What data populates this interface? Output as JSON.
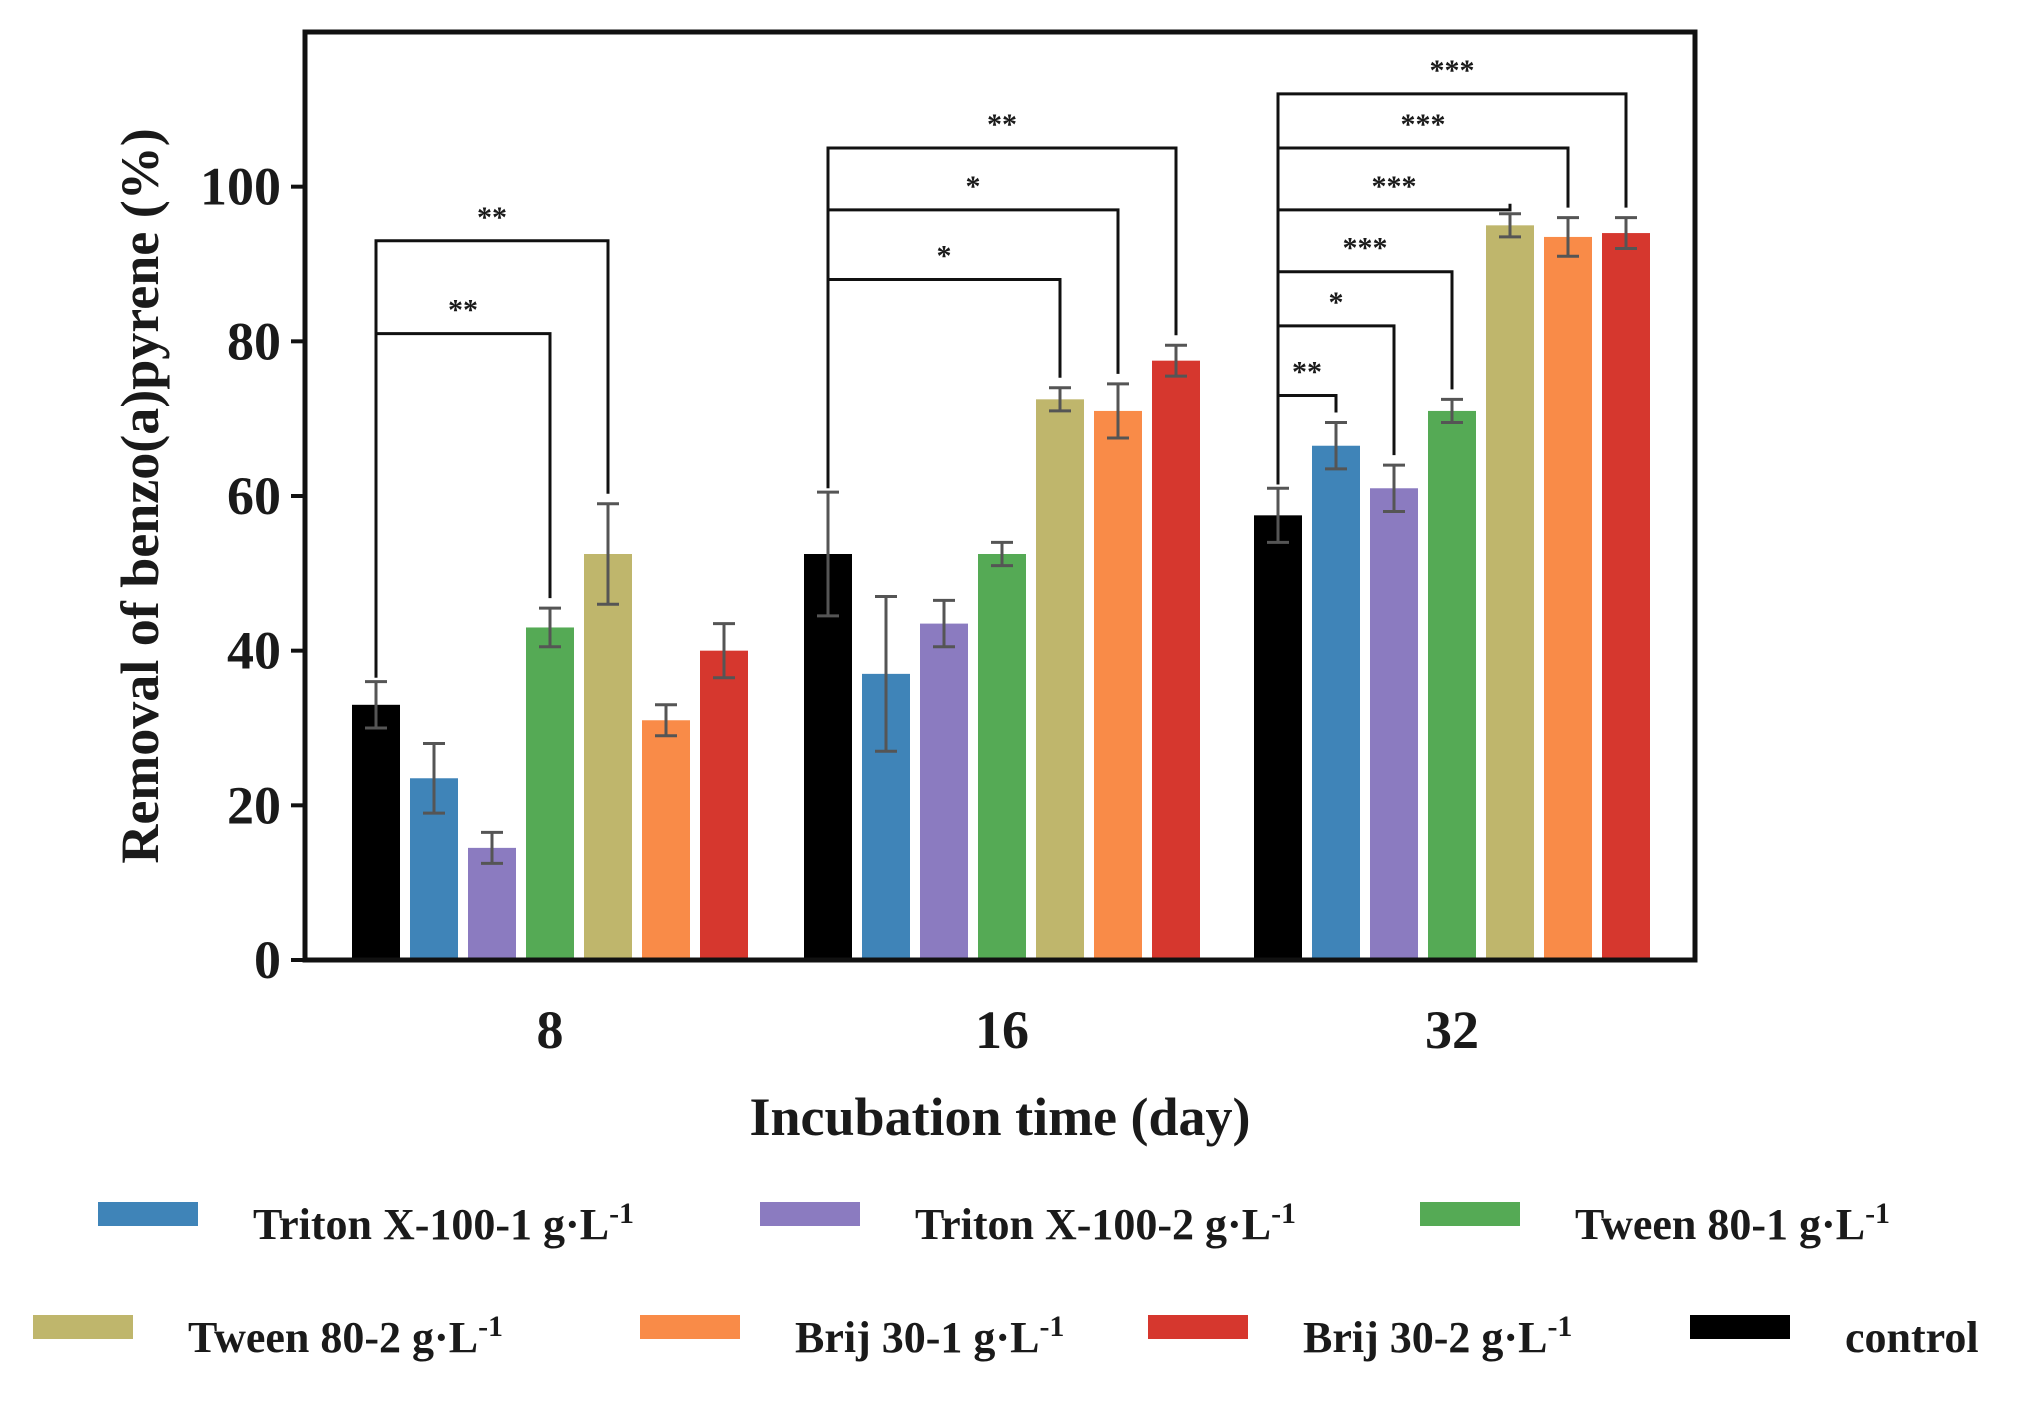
{
  "chart_data": {
    "type": "bar",
    "xlabel": "Incubation time (day)",
    "ylabel": "Removal of benzo(a)pyrene (%)",
    "ylim": [
      0,
      120
    ],
    "yticks": [
      0,
      20,
      40,
      60,
      80,
      100
    ],
    "categories": [
      "8",
      "16",
      "32"
    ],
    "series": [
      {
        "name": "control",
        "legend_main": "control",
        "legend_sup": "",
        "color": "#000000",
        "values": [
          33,
          52.5,
          57.5
        ],
        "errors": [
          3,
          8,
          3.5
        ]
      },
      {
        "name": "Triton X-100-1 g·L-1",
        "legend_main": "Triton X-100-1 g·L",
        "legend_sup": "-1",
        "color": "#3f84b8",
        "values": [
          23.5,
          37,
          66.5
        ],
        "errors": [
          4.5,
          10,
          3
        ]
      },
      {
        "name": "Triton X-100-2 g·L-1",
        "legend_main": "Triton X-100-2 g·L",
        "legend_sup": "-1",
        "color": "#8b7bc0",
        "values": [
          14.5,
          43.5,
          61
        ],
        "errors": [
          2,
          3,
          3
        ]
      },
      {
        "name": "Tween 80-1 g·L-1",
        "legend_main": "Tween 80-1 g·L",
        "legend_sup": "-1",
        "color": "#55aa55",
        "values": [
          43,
          52.5,
          71
        ],
        "errors": [
          2.5,
          1.5,
          1.5
        ]
      },
      {
        "name": "Tween 80-2 g·L-1",
        "legend_main": "Tween 80-2 g·L",
        "legend_sup": "-1",
        "color": "#bfb66c",
        "values": [
          52.5,
          72.5,
          95
        ],
        "errors": [
          6.5,
          1.5,
          1.5
        ]
      },
      {
        "name": "Brij 30-1 g·L-1",
        "legend_main": "Brij 30-1 g·L",
        "legend_sup": "-1",
        "color": "#f98b48",
        "values": [
          31,
          71,
          93.5
        ],
        "errors": [
          2,
          3.5,
          2.5
        ]
      },
      {
        "name": "Brij 30-2 g·L-1",
        "legend_main": "Brij 30-2 g·L",
        "legend_sup": "-1",
        "color": "#d6372e",
        "values": [
          40,
          77.5,
          94
        ],
        "errors": [
          3.5,
          2,
          2
        ]
      }
    ],
    "significance": [
      {
        "category": 0,
        "from": 0,
        "to": 3,
        "label": "**",
        "level": 81
      },
      {
        "category": 0,
        "from": 0,
        "to": 4,
        "label": "**",
        "level": 93
      },
      {
        "category": 1,
        "from": 0,
        "to": 4,
        "label": "*",
        "level": 88
      },
      {
        "category": 1,
        "from": 0,
        "to": 5,
        "label": "*",
        "level": 97
      },
      {
        "category": 1,
        "from": 0,
        "to": 6,
        "label": "**",
        "level": 105
      },
      {
        "category": 2,
        "from": 0,
        "to": 1,
        "label": "**",
        "level": 73
      },
      {
        "category": 2,
        "from": 0,
        "to": 2,
        "label": "*",
        "level": 82
      },
      {
        "category": 2,
        "from": 0,
        "to": 3,
        "label": "***",
        "level": 89
      },
      {
        "category": 2,
        "from": 0,
        "to": 4,
        "label": "***",
        "level": 97
      },
      {
        "category": 2,
        "from": 0,
        "to": 5,
        "label": "***",
        "level": 105
      },
      {
        "category": 2,
        "from": 0,
        "to": 6,
        "label": "***",
        "level": 112
      }
    ],
    "legend_order": [
      1,
      2,
      3,
      4,
      5,
      6,
      0
    ],
    "legend_position": "bottom"
  }
}
